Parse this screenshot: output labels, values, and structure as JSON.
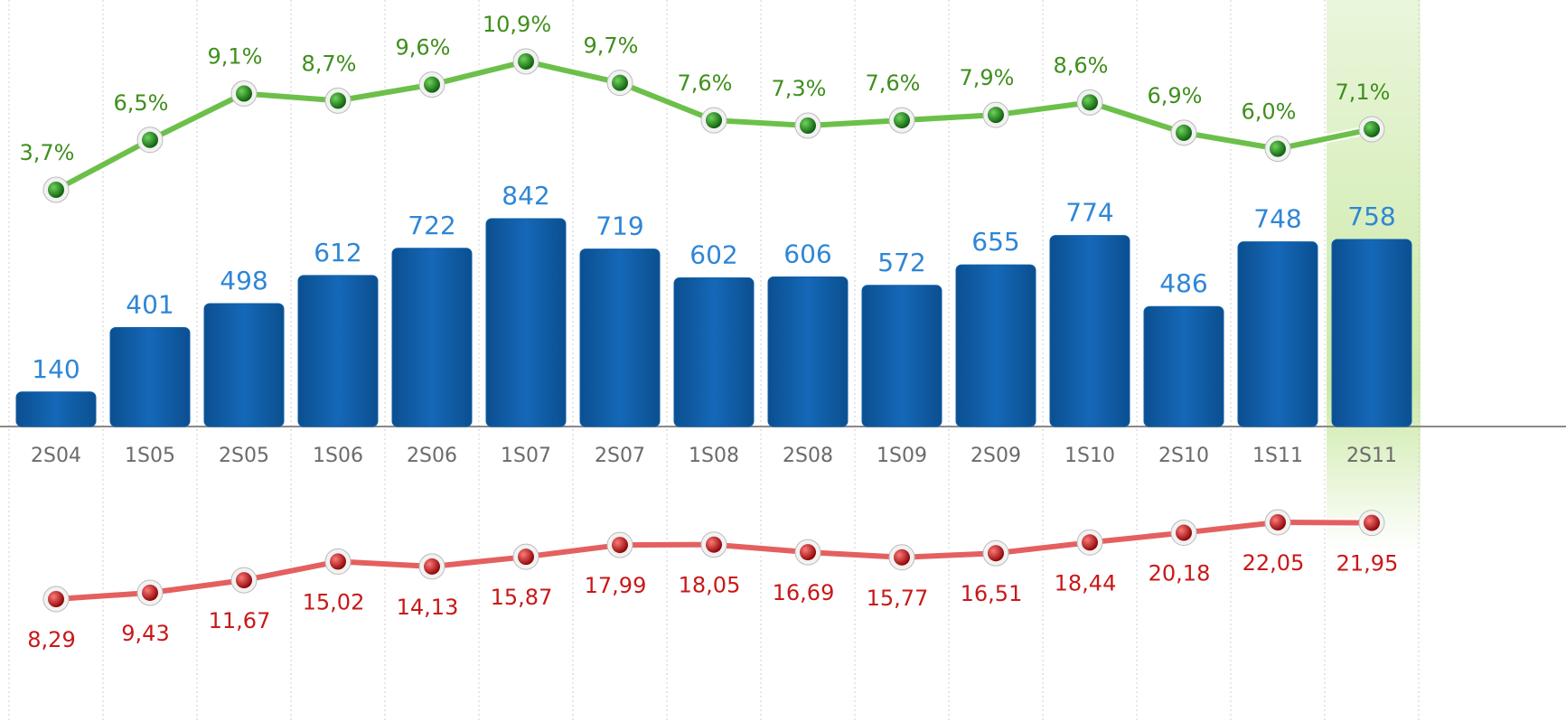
{
  "chart_data": {
    "type": "bar",
    "categories": [
      "2S04",
      "1S05",
      "2S05",
      "1S06",
      "2S06",
      "1S07",
      "2S07",
      "1S08",
      "2S08",
      "1S09",
      "2S09",
      "1S10",
      "2S10",
      "1S11",
      "2S11"
    ],
    "series": [
      {
        "type": "bar",
        "color": "#0f5fa8",
        "values": [
          140,
          401,
          498,
          612,
          722,
          842,
          719,
          602,
          606,
          572,
          655,
          774,
          486,
          748,
          758
        ]
      },
      {
        "type": "line",
        "color": "#6cc04a",
        "values": [
          3.7,
          6.5,
          9.1,
          8.7,
          9.6,
          10.9,
          9.7,
          7.6,
          7.3,
          7.6,
          7.9,
          8.6,
          6.9,
          6.0,
          7.1
        ],
        "value_labels": [
          "3,7%",
          "6,5%",
          "9,1%",
          "8,7%",
          "9,6%",
          "10,9%",
          "9,7%",
          "7,6%",
          "7,3%",
          "7,6%",
          "7,9%",
          "8,6%",
          "6,9%",
          "6,0%",
          "7,1%"
        ]
      },
      {
        "type": "line",
        "color": "#e46060",
        "values": [
          8.29,
          9.43,
          11.67,
          15.02,
          14.13,
          15.87,
          17.99,
          18.05,
          16.69,
          15.77,
          16.51,
          18.44,
          20.18,
          22.05,
          21.95
        ],
        "value_labels": [
          "8,29",
          "9,43",
          "11,67",
          "15,02",
          "14,13",
          "15,87",
          "17,99",
          "18,05",
          "16,69",
          "15,77",
          "16,51",
          "18,44",
          "20,18",
          "22,05",
          "21,95"
        ]
      }
    ]
  }
}
